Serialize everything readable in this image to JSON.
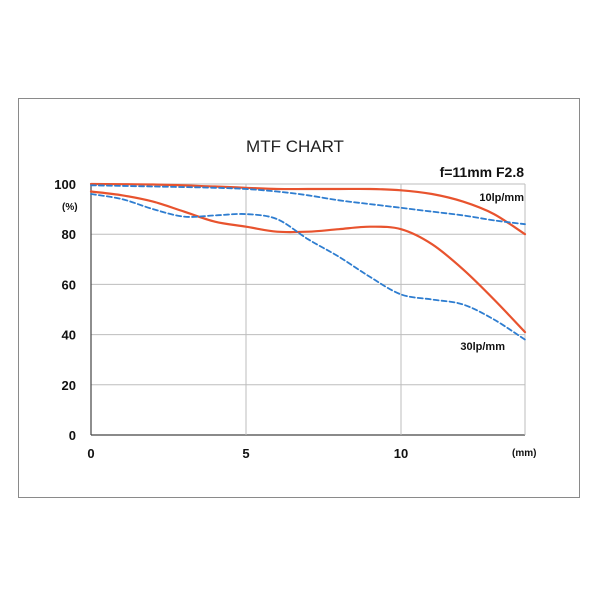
{
  "chart_data": {
    "type": "line",
    "title": "MTF CHART",
    "subtitle": "f=11mm F2.8",
    "xlabel": "(mm)",
    "ylabel": "(%)",
    "xlim": [
      0,
      14
    ],
    "ylim": [
      0,
      100
    ],
    "xticks": [
      0,
      5,
      10
    ],
    "yticks": [
      0,
      20,
      40,
      60,
      80,
      100
    ],
    "grid": true,
    "annotations": [
      "10lp/mm",
      "30lp/mm"
    ],
    "colors": {
      "solid": "#e8532e",
      "dashed": "#2e7dd0"
    },
    "series": [
      {
        "style": "solid",
        "color": "#e8532e",
        "x": [
          0,
          2,
          4,
          5,
          6,
          7,
          8,
          9,
          10,
          11,
          12,
          13,
          14
        ],
        "y": [
          100,
          99.8,
          99,
          98.5,
          98,
          98,
          98,
          98,
          97.5,
          96,
          93,
          88,
          80
        ]
      },
      {
        "style": "dashed",
        "color": "#2e7dd0",
        "x": [
          0,
          2,
          4,
          5,
          6,
          7,
          8,
          9,
          10,
          11,
          12,
          13,
          14
        ],
        "y": [
          99.5,
          99,
          98.5,
          98,
          97,
          95.5,
          93.5,
          92,
          90.5,
          89,
          87.5,
          85.5,
          84
        ]
      },
      {
        "style": "solid",
        "color": "#e8532e",
        "x": [
          0,
          1,
          2,
          3,
          4,
          5,
          6,
          7,
          8,
          9,
          10,
          11,
          12,
          13,
          14
        ],
        "y": [
          97,
          95.5,
          93,
          89,
          85,
          83,
          81,
          81,
          82,
          83,
          82,
          76,
          66,
          54,
          41
        ]
      },
      {
        "style": "dashed",
        "color": "#2e7dd0",
        "x": [
          0,
          1,
          2,
          3,
          4,
          5,
          6,
          7,
          8,
          9,
          10,
          11,
          12,
          13,
          14
        ],
        "y": [
          96,
          94,
          90,
          87,
          87.5,
          88,
          86,
          78,
          71,
          63,
          56,
          54,
          52,
          46,
          38
        ]
      }
    ]
  }
}
